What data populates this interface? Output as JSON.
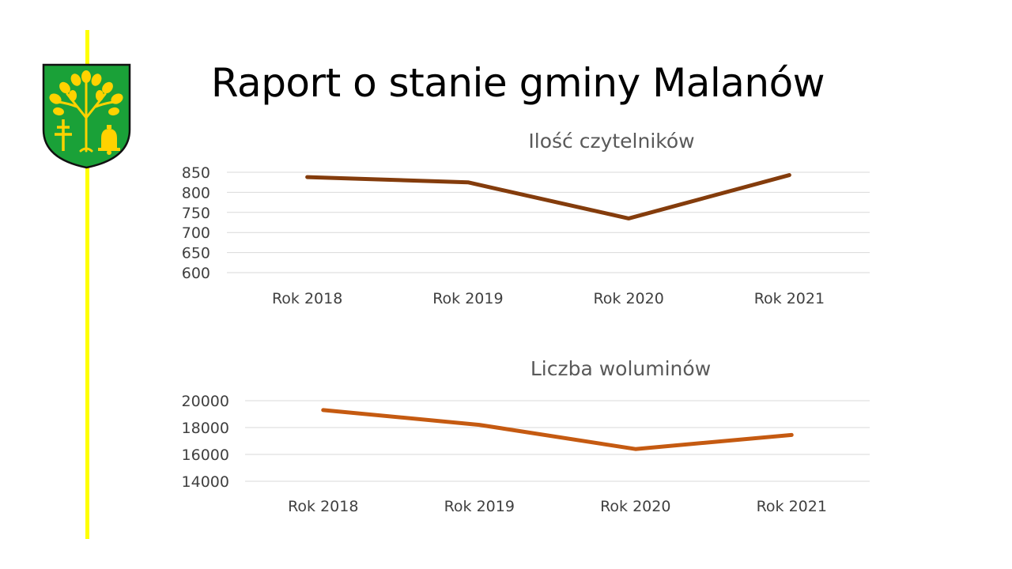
{
  "slide": {
    "title": "Raport o stanie gminy Malanów"
  },
  "colors": {
    "accent_line": "#ffff00",
    "crest_green": "#1aa138",
    "crest_gold": "#ffd200"
  },
  "chart_data": [
    {
      "type": "line",
      "title": "Ilość czytelników",
      "categories": [
        "Rok 2018",
        "Rok 2019",
        "Rok 2020",
        "Rok 2021"
      ],
      "values": [
        838,
        825,
        735,
        843
      ],
      "yticks": [
        600,
        650,
        700,
        750,
        800,
        850
      ],
      "ylim": [
        600,
        850
      ],
      "grid": true,
      "color": "#843c0c"
    },
    {
      "type": "line",
      "title": "Liczba woluminów",
      "categories": [
        "Rok 2018",
        "Rok 2019",
        "Rok 2020",
        "Rok 2021"
      ],
      "values": [
        19300,
        18200,
        16400,
        17450
      ],
      "yticks": [
        14000,
        16000,
        18000,
        20000
      ],
      "ylim": [
        14000,
        20000
      ],
      "grid": true,
      "color": "#c55a11"
    }
  ]
}
